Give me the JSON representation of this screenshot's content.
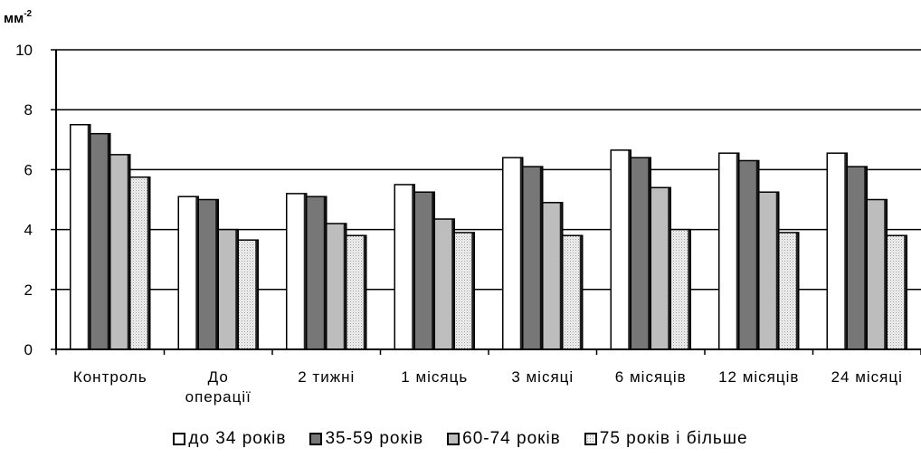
{
  "chart_data": {
    "type": "bar",
    "unit_label": "мм",
    "unit_exponent": "-2",
    "ylim": [
      0,
      10
    ],
    "yticks": [
      0,
      2,
      4,
      6,
      8,
      10
    ],
    "grid": "horizontal",
    "legend_position": "bottom",
    "categories": [
      [
        "Контроль"
      ],
      [
        "До",
        "операції"
      ],
      [
        "2 тижні"
      ],
      [
        "1 місяць"
      ],
      [
        "3 місяці"
      ],
      [
        "6 місяців"
      ],
      [
        "12 місяців"
      ],
      [
        "24 місяці"
      ]
    ],
    "series": [
      {
        "name": "до 34 років",
        "color": "#ffffff",
        "pattern": "solid",
        "values": [
          7.5,
          5.1,
          5.2,
          5.5,
          6.4,
          6.65,
          6.55,
          6.55
        ]
      },
      {
        "name": "35-59 років",
        "color": "#777777",
        "pattern": "solid",
        "values": [
          7.2,
          5.0,
          5.1,
          5.25,
          6.1,
          6.4,
          6.3,
          6.1
        ]
      },
      {
        "name": "60-74 років",
        "color": "#bdbdbd",
        "pattern": "solid",
        "values": [
          6.5,
          4.0,
          4.2,
          4.35,
          4.9,
          5.4,
          5.25,
          5.0
        ]
      },
      {
        "name": "75 років і більше",
        "color": "#eeeeee",
        "pattern": "dots",
        "values": [
          5.75,
          3.65,
          3.8,
          3.9,
          3.8,
          4.0,
          3.9,
          3.8
        ]
      }
    ]
  }
}
